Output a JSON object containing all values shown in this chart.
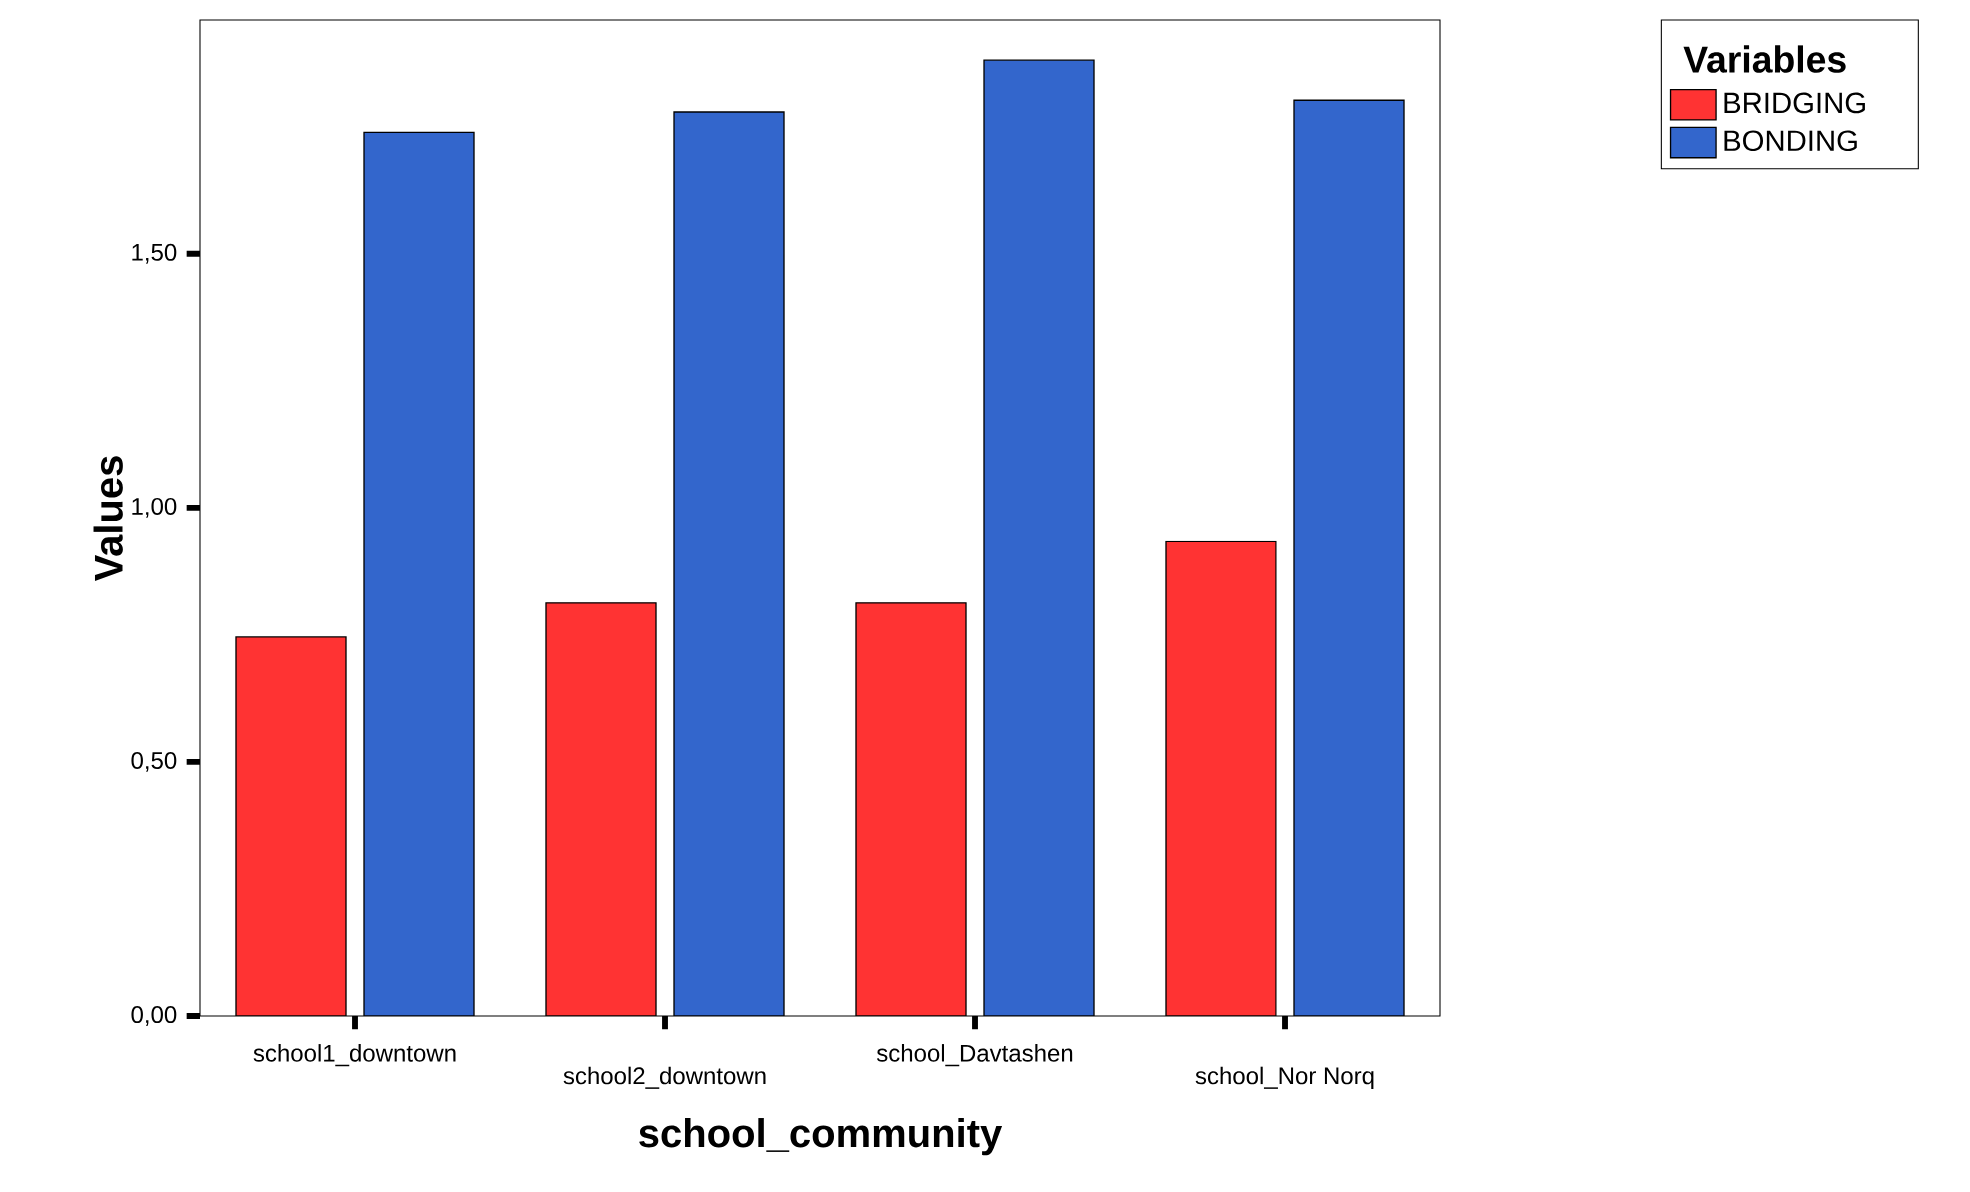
{
  "chart_data": {
    "type": "bar",
    "xlabel": "school_community",
    "ylabel": "Values",
    "legend_title": "Variables",
    "categories": [
      "school1_downtown",
      "school2_downtown",
      "school_Davtashen",
      "school_Nor Norq"
    ],
    "series": [
      {
        "name": "BRIDGING",
        "color": "#ff3333",
        "values": [
          0.746,
          0.813,
          0.813,
          0.934
        ]
      },
      {
        "name": "BONDING",
        "color": "#3366cc",
        "values": [
          1.739,
          1.779,
          1.881,
          1.802
        ]
      }
    ],
    "ylim": [
      0,
      1.96
    ],
    "yticks": [
      {
        "value": 0,
        "label": "0,00"
      },
      {
        "value": 0.5,
        "label": "0,50"
      },
      {
        "value": 1.0,
        "label": "1,00"
      },
      {
        "value": 1.5,
        "label": "1,50"
      }
    ],
    "grid": false,
    "legend": "top right"
  }
}
